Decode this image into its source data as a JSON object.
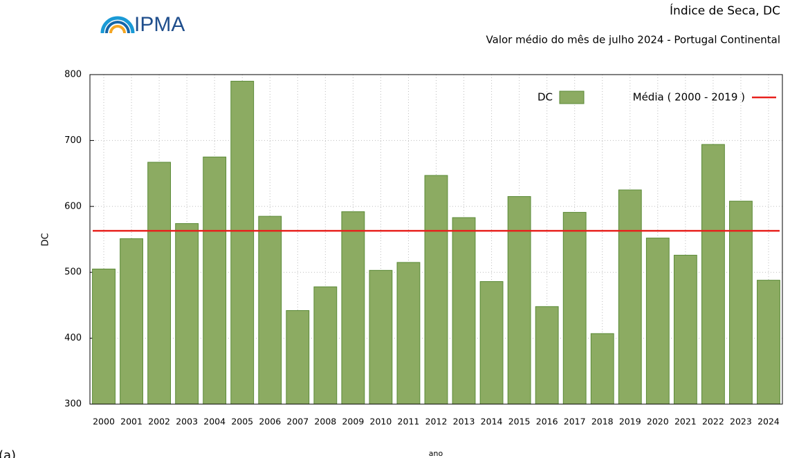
{
  "logo_text": "IPMA",
  "panel_label": "(a)",
  "chart_data": {
    "type": "bar",
    "title": "Índice de Seca, DC",
    "subtitle": "Valor médio do mês de julho 2024 - Portugal Continental",
    "x_label": "ano",
    "y_label": "DC",
    "categories": [
      "2000",
      "2001",
      "2002",
      "2003",
      "2004",
      "2005",
      "2006",
      "2007",
      "2008",
      "2009",
      "2010",
      "2011",
      "2012",
      "2013",
      "2014",
      "2015",
      "2016",
      "2017",
      "2018",
      "2019",
      "2020",
      "2021",
      "2022",
      "2023",
      "2024"
    ],
    "series": [
      {
        "name": "DC",
        "color": "#8cab62",
        "values": [
          505,
          551,
          667,
          574,
          675,
          790,
          585,
          442,
          478,
          592,
          503,
          515,
          647,
          583,
          486,
          615,
          448,
          591,
          407,
          625,
          552,
          526,
          694,
          608,
          488
        ]
      }
    ],
    "reference_line": {
      "name": "Média ( 2000 - 2019 )",
      "value": 563,
      "color": "#e8201c"
    },
    "ylim": [
      300,
      800
    ],
    "yticks": [
      300,
      400,
      500,
      600,
      700,
      800
    ],
    "grid": true,
    "legend": "top-right"
  }
}
